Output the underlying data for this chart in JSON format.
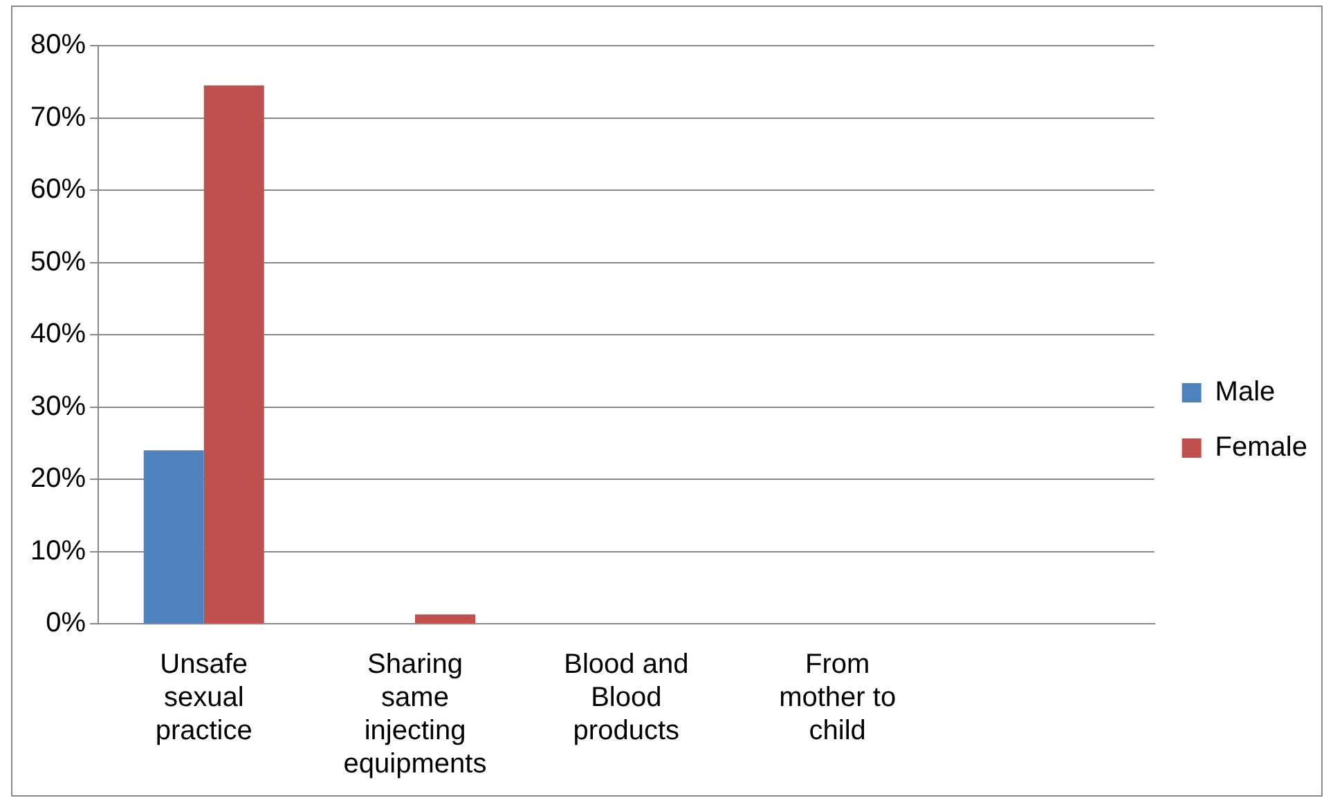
{
  "chart_data": {
    "type": "bar",
    "categories": [
      "Unsafe sexual practice",
      "Sharing same injecting equipments",
      "Blood and Blood products",
      "From mother to child",
      null
    ],
    "series": [
      {
        "name": "Male",
        "color": "#4f81bd",
        "values": [
          24,
          0,
          0,
          0,
          0
        ]
      },
      {
        "name": "Female",
        "color": "#c0504d",
        "values": [
          74.5,
          1.3,
          0,
          0,
          0
        ]
      }
    ],
    "ylim": [
      0,
      80
    ],
    "yticks": [
      {
        "value": 0,
        "label": "0%"
      },
      {
        "value": 10,
        "label": "10%"
      },
      {
        "value": 20,
        "label": "20%"
      },
      {
        "value": 30,
        "label": "30%"
      },
      {
        "value": 40,
        "label": "40%"
      },
      {
        "value": 50,
        "label": "50%"
      },
      {
        "value": 60,
        "label": "60%"
      },
      {
        "value": 70,
        "label": "70%"
      },
      {
        "value": 80,
        "label": "80%"
      }
    ],
    "grid": "y",
    "legend": "right"
  }
}
